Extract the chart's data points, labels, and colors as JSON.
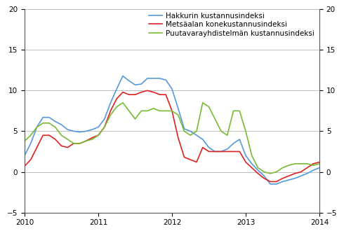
{
  "legend_labels": [
    "Hakkurin kustannusindeksi",
    "Metsäalan konekustannusindeksi",
    "Puutavarayhdistelmän kustannusindeksi"
  ],
  "colors": [
    "#5599dd",
    "#dd2222",
    "#77bb33"
  ],
  "line_width": 1.2,
  "ylim": [
    -5,
    20
  ],
  "yticks": [
    -5,
    0,
    5,
    10,
    15,
    20
  ],
  "blue": [
    2.0,
    3.5,
    5.5,
    6.7,
    6.7,
    6.2,
    5.8,
    5.2,
    5.0,
    4.9,
    5.0,
    5.2,
    5.5,
    6.5,
    8.5,
    10.2,
    11.8,
    11.2,
    10.7,
    10.8,
    11.5,
    11.5,
    11.5,
    11.3,
    10.2,
    7.8,
    5.3,
    5.0,
    4.5,
    4.0,
    3.0,
    2.5,
    2.5,
    2.8,
    3.5,
    4.0,
    2.0,
    1.0,
    0.2,
    -0.5,
    -1.5,
    -1.5,
    -1.2,
    -1.0,
    -0.8,
    -0.5,
    -0.2,
    0.2,
    0.5,
    0.0
  ],
  "red": [
    0.7,
    1.5,
    3.0,
    4.5,
    4.5,
    4.0,
    3.2,
    3.0,
    3.5,
    3.5,
    3.8,
    4.2,
    4.5,
    5.5,
    7.5,
    9.0,
    9.8,
    9.5,
    9.5,
    9.8,
    10.0,
    9.8,
    9.5,
    9.5,
    7.5,
    4.2,
    1.8,
    1.5,
    1.2,
    3.0,
    2.5,
    2.5,
    2.5,
    2.5,
    2.5,
    2.5,
    1.2,
    0.5,
    -0.2,
    -0.8,
    -1.2,
    -1.2,
    -0.8,
    -0.5,
    -0.2,
    0.0,
    0.5,
    1.0,
    1.2,
    0.5
  ],
  "green": [
    3.8,
    4.5,
    5.5,
    6.0,
    6.0,
    5.5,
    4.5,
    4.0,
    3.5,
    3.5,
    3.8,
    4.0,
    4.5,
    5.5,
    7.0,
    8.0,
    8.5,
    7.5,
    6.5,
    7.5,
    7.5,
    7.8,
    7.5,
    7.5,
    7.5,
    7.0,
    5.0,
    4.5,
    5.0,
    8.5,
    8.0,
    6.5,
    5.0,
    4.5,
    7.5,
    7.5,
    5.0,
    2.0,
    0.5,
    0.0,
    -0.2,
    0.0,
    0.5,
    0.8,
    1.0,
    1.0,
    1.0,
    0.8,
    1.0,
    0.8
  ],
  "xtick_positions": [
    0,
    12,
    24,
    36,
    48
  ],
  "xtick_labels": [
    "2010",
    "2011",
    "2012",
    "2013",
    "2014"
  ],
  "background_color": "#ffffff",
  "grid_color": "#c0c0c0",
  "fontsize": 7.5
}
